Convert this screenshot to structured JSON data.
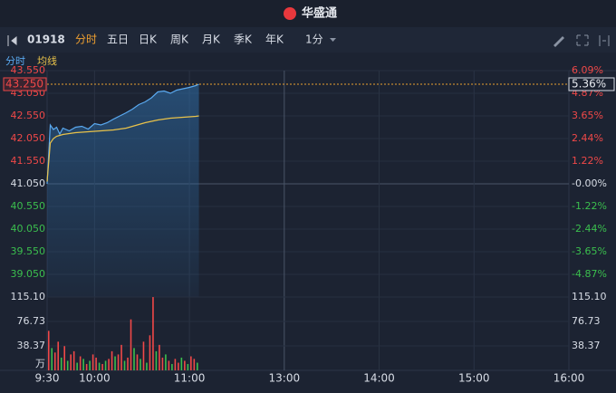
{
  "header": {
    "logo": "华盛通"
  },
  "toolbar": {
    "symbol": "01918",
    "tabs": [
      "分时",
      "五日",
      "日K",
      "周K",
      "月K",
      "季K",
      "年K"
    ],
    "active_tab": 0,
    "interval": "1分"
  },
  "subtabs": [
    "分时",
    "均线"
  ],
  "chart_data": [
    {
      "type": "line",
      "xlim": [
        0,
        330
      ],
      "xticks": [
        {
          "value": 0,
          "label": "9:30"
        },
        {
          "value": 30,
          "label": "10:00"
        },
        {
          "value": 90,
          "label": "11:00"
        },
        {
          "value": 150,
          "label": "13:00"
        },
        {
          "value": 210,
          "label": "14:00"
        },
        {
          "value": 270,
          "label": "15:00"
        },
        {
          "value": 330,
          "label": "16:00"
        }
      ],
      "ylim": [
        38.55,
        43.55
      ],
      "yticks": [
        {
          "value": 43.55,
          "label": "43.550"
        },
        {
          "value": 43.05,
          "label": "43.050"
        },
        {
          "value": 42.55,
          "label": "42.550"
        },
        {
          "value": 42.05,
          "label": "42.050"
        },
        {
          "value": 41.55,
          "label": "41.550"
        },
        {
          "value": 41.05,
          "label": "41.050"
        },
        {
          "value": 40.55,
          "label": "40.550"
        },
        {
          "value": 40.05,
          "label": "40.050"
        },
        {
          "value": 39.55,
          "label": "39.550"
        },
        {
          "value": 39.05,
          "label": "39.050"
        }
      ],
      "y2lim": [
        -6.09,
        6.09
      ],
      "y2ticks": [
        {
          "value": 6.09,
          "label": "6.09%"
        },
        {
          "value": 4.87,
          "label": "4.87%"
        },
        {
          "value": 3.65,
          "label": "3.65%"
        },
        {
          "value": 2.44,
          "label": "2.44%"
        },
        {
          "value": 1.22,
          "label": "1.22%"
        },
        {
          "value": 0,
          "label": "-0.00%"
        },
        {
          "value": -1.22,
          "label": "-1.22%"
        },
        {
          "value": -2.44,
          "label": "-2.44%"
        },
        {
          "value": -3.65,
          "label": "-3.65%"
        },
        {
          "value": -4.87,
          "label": "-4.87%"
        }
      ],
      "up_color": "#f04848",
      "down_color": "#3bbf4e",
      "flat_color": "#d8dde6",
      "x": [
        0,
        2,
        4,
        6,
        8,
        10,
        14,
        18,
        22,
        26,
        30,
        34,
        38,
        42,
        46,
        50,
        54,
        58,
        62,
        66,
        70,
        74,
        78,
        82,
        86,
        90,
        94,
        96
      ],
      "series": [
        {
          "name": "分时",
          "color": "#5aa9f0",
          "values": [
            41.05,
            42.35,
            42.25,
            42.3,
            42.15,
            42.28,
            42.22,
            42.3,
            42.32,
            42.26,
            42.38,
            42.35,
            42.4,
            42.48,
            42.55,
            42.62,
            42.7,
            42.8,
            42.86,
            42.95,
            43.08,
            43.1,
            43.05,
            43.12,
            43.15,
            43.18,
            43.22,
            43.25
          ]
        },
        {
          "name": "均线",
          "color": "#e8c24a",
          "values": [
            41.1,
            41.95,
            42.05,
            42.1,
            42.12,
            42.14,
            42.16,
            42.18,
            42.19,
            42.2,
            42.21,
            42.22,
            42.23,
            42.24,
            42.26,
            42.28,
            42.32,
            42.36,
            42.4,
            42.43,
            42.46,
            42.48,
            42.5,
            42.51,
            42.52,
            42.53,
            42.54,
            42.55
          ]
        }
      ],
      "current_price": {
        "value": 43.25,
        "label": "43.250"
      },
      "current_change": {
        "value": 5.36,
        "label": "5.36%"
      }
    },
    {
      "type": "bar",
      "unit": "万",
      "ylim": [
        0,
        115.1
      ],
      "yticks": [
        38.37,
        76.73,
        {
          "value": 115.1,
          "label": "115.10"
        }
      ],
      "x": [
        1,
        3,
        5,
        7,
        9,
        11,
        13,
        15,
        17,
        19,
        21,
        23,
        25,
        27,
        29,
        31,
        33,
        35,
        37,
        39,
        41,
        43,
        45,
        47,
        49,
        51,
        53,
        55,
        57,
        59,
        61,
        63,
        65,
        67,
        69,
        71,
        73,
        75,
        77,
        79,
        81,
        83,
        85,
        87,
        89,
        91,
        93,
        95
      ],
      "values": [
        62,
        35,
        28,
        45,
        20,
        38,
        15,
        25,
        30,
        12,
        22,
        18,
        10,
        15,
        25,
        20,
        12,
        10,
        15,
        18,
        30,
        22,
        25,
        40,
        15,
        20,
        80,
        35,
        25,
        18,
        45,
        12,
        55,
        115,
        30,
        40,
        20,
        25,
        15,
        10,
        18,
        12,
        20,
        15,
        10,
        22,
        18,
        12
      ],
      "bar_colors": [
        "#f04848",
        "#3bbf4e",
        "#f04848",
        "#f04848",
        "#3bbf4e",
        "#f04848",
        "#3bbf4e",
        "#f04848",
        "#f04848",
        "#3bbf4e",
        "#f04848",
        "#3bbf4e",
        "#f04848",
        "#3bbf4e",
        "#f04848",
        "#f04848",
        "#3bbf4e",
        "#f04848",
        "#3bbf4e",
        "#f04848",
        "#f04848",
        "#3bbf4e",
        "#f04848",
        "#f04848",
        "#3bbf4e",
        "#f04848",
        "#f04848",
        "#3bbf4e",
        "#f04848",
        "#3bbf4e",
        "#f04848",
        "#3bbf4e",
        "#f04848",
        "#f04848",
        "#3bbf4e",
        "#f04848",
        "#f04848",
        "#3bbf4e",
        "#f04848",
        "#3bbf4e",
        "#f04848",
        "#f04848",
        "#3bbf4e",
        "#f04848",
        "#3bbf4e",
        "#f04848",
        "#f04848",
        "#3bbf4e"
      ]
    }
  ]
}
